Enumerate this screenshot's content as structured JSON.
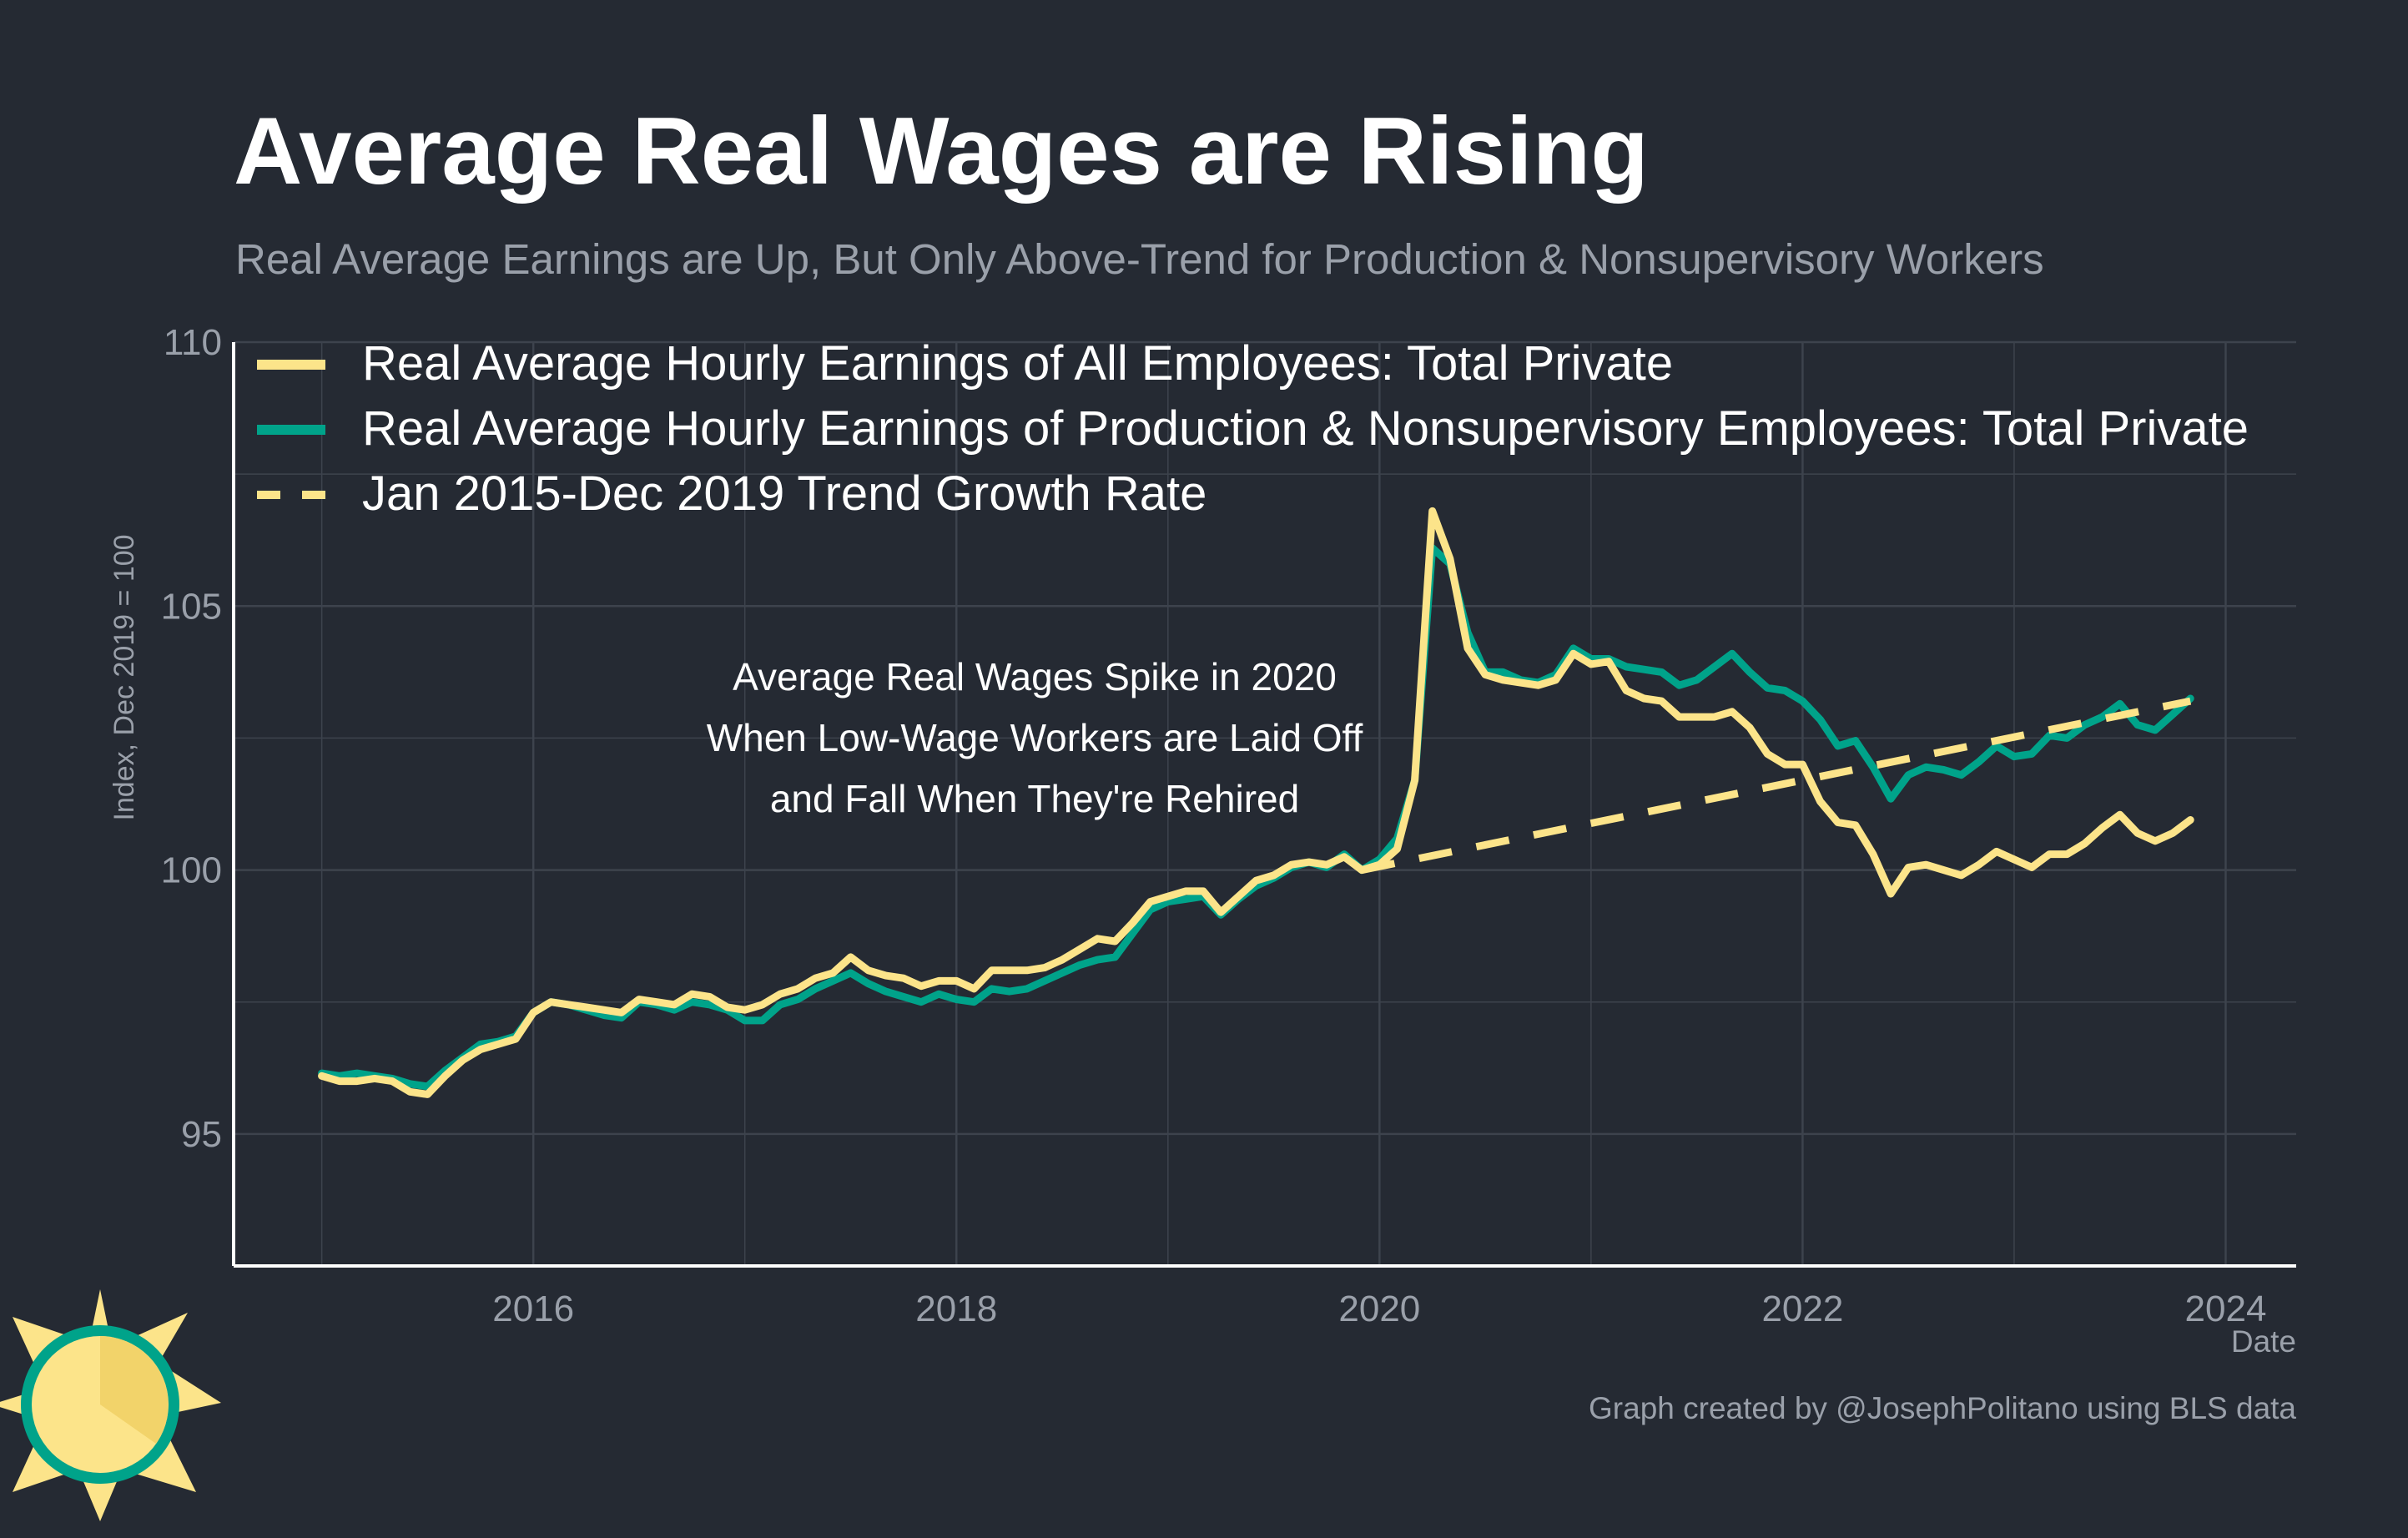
{
  "colors": {
    "background": "#252a33",
    "grid": "#3d434d",
    "all_employees": "#fce48a",
    "production": "#00a38a",
    "trend": "#fce48a",
    "text": "#ffffff",
    "muted": "#9aa0aa"
  },
  "logo_icon": "sun-logo-icon",
  "credit": "Graph created by @JosephPolitano using BLS data",
  "chart_data": {
    "type": "line",
    "title": "Average Real Wages are Rising",
    "subtitle": "Real Average Earnings are Up, But Only Above-Trend for Production & Nonsupervisory Workers",
    "xlabel": "Date",
    "ylabel": "Index, Dec 2019 = 100",
    "xlim": [
      "2014-08",
      "2024-05"
    ],
    "ylim": [
      92.5,
      110
    ],
    "xticks": [
      "2016",
      "2018",
      "2020",
      "2022",
      "2024"
    ],
    "yticks": [
      95,
      100,
      105,
      110
    ],
    "grid": true,
    "legend_position": "top-left",
    "annotation": {
      "lines": [
        "Average Real Wages Spike in 2020",
        "When Low-Wage Workers are Laid Off",
        "and Fall When They're Rehired"
      ],
      "x": "2017-05",
      "y": 102.3
    },
    "x_start": "2015-01",
    "series": [
      {
        "name": "Real Average Hourly Earnings of All Employees: Total Private",
        "color": "#fce48a",
        "dash": false,
        "values": [
          96.1,
          96.0,
          96.0,
          96.05,
          96.0,
          95.8,
          95.75,
          96.1,
          96.4,
          96.6,
          96.7,
          96.8,
          97.3,
          97.5,
          97.45,
          97.4,
          97.35,
          97.3,
          97.55,
          97.5,
          97.45,
          97.65,
          97.6,
          97.4,
          97.35,
          97.45,
          97.65,
          97.75,
          97.95,
          98.05,
          98.35,
          98.1,
          98.0,
          97.95,
          97.8,
          97.9,
          97.9,
          97.75,
          98.1,
          98.1,
          98.1,
          98.15,
          98.3,
          98.5,
          98.7,
          98.65,
          99.0,
          99.4,
          99.5,
          99.6,
          99.6,
          99.2,
          99.5,
          99.8,
          99.9,
          100.1,
          100.15,
          100.1,
          100.25,
          100.0,
          100.1,
          100.4,
          101.7,
          106.8,
          105.9,
          104.2,
          103.7,
          103.6,
          103.55,
          103.5,
          103.6,
          104.1,
          103.9,
          103.95,
          103.4,
          103.25,
          103.2,
          102.9,
          102.9,
          102.9,
          103.0,
          102.7,
          102.2,
          102.0,
          102.0,
          101.3,
          100.9,
          100.85,
          100.3,
          99.55,
          100.05,
          100.1,
          100.0,
          99.9,
          100.1,
          100.35,
          100.2,
          100.05,
          100.3,
          100.3,
          100.5,
          100.8,
          101.05,
          100.7,
          100.55,
          100.7,
          100.95
        ]
      },
      {
        "name": "Real Average Hourly Earnings of Production & Nonsupervisory Employees: Total Private",
        "color": "#00a38a",
        "dash": false,
        "values": [
          96.15,
          96.1,
          96.15,
          96.1,
          96.05,
          95.95,
          95.9,
          96.2,
          96.45,
          96.7,
          96.75,
          96.85,
          97.3,
          97.5,
          97.45,
          97.35,
          97.25,
          97.2,
          97.5,
          97.45,
          97.35,
          97.5,
          97.45,
          97.35,
          97.15,
          97.15,
          97.45,
          97.55,
          97.75,
          97.9,
          98.05,
          97.85,
          97.7,
          97.6,
          97.5,
          97.65,
          97.55,
          97.5,
          97.75,
          97.7,
          97.75,
          97.9,
          98.05,
          98.2,
          98.3,
          98.35,
          98.8,
          99.25,
          99.4,
          99.45,
          99.5,
          99.15,
          99.45,
          99.7,
          99.85,
          100.05,
          100.15,
          100.05,
          100.3,
          100.0,
          100.2,
          100.6,
          101.7,
          106.1,
          105.8,
          104.5,
          103.75,
          103.75,
          103.6,
          103.55,
          103.7,
          104.2,
          104.0,
          104.0,
          103.85,
          103.8,
          103.75,
          103.5,
          103.6,
          103.85,
          104.1,
          103.75,
          103.45,
          103.4,
          103.2,
          102.85,
          102.35,
          102.45,
          101.95,
          101.35,
          101.8,
          101.95,
          101.9,
          101.8,
          102.05,
          102.35,
          102.15,
          102.2,
          102.55,
          102.5,
          102.75,
          102.9,
          103.15,
          102.75,
          102.65,
          102.95,
          103.25
        ]
      },
      {
        "name": "Jan 2015-Dec 2019 Trend Growth Rate",
        "color": "#fce48a",
        "dash": true,
        "points": [
          [
            "2019-12",
            100.0
          ],
          [
            "2023-11",
            103.2
          ]
        ]
      }
    ]
  }
}
